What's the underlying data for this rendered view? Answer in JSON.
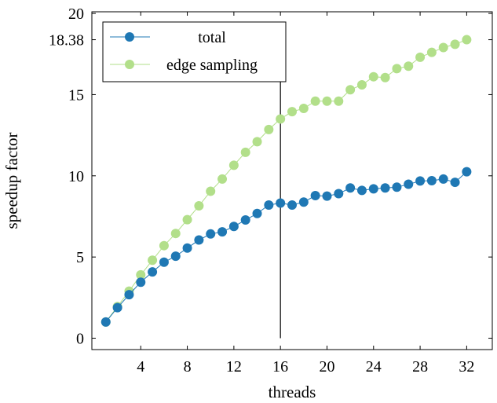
{
  "chart_data": {
    "type": "line",
    "xlabel": "threads",
    "ylabel": "speedup factor",
    "xlim": [
      -0.2,
      34.2
    ],
    "ylim": [
      -0.7,
      20.1
    ],
    "x_ticks": [
      4,
      8,
      12,
      16,
      20,
      24,
      28,
      32
    ],
    "y_ticks": [
      {
        "value": 0,
        "label": "0"
      },
      {
        "value": 5,
        "label": "5"
      },
      {
        "value": 10,
        "label": "10"
      },
      {
        "value": 15,
        "label": "15"
      },
      {
        "value": 18.38,
        "label": "18.38"
      },
      {
        "value": 20,
        "label": "20"
      }
    ],
    "vertical_line_x": 16,
    "legend_position": "top-left",
    "x": [
      1,
      2,
      3,
      4,
      5,
      6,
      7,
      8,
      9,
      10,
      11,
      12,
      13,
      14,
      15,
      16,
      17,
      18,
      19,
      20,
      21,
      22,
      23,
      24,
      25,
      26,
      27,
      28,
      29,
      30,
      31,
      32
    ],
    "series": [
      {
        "name": "total",
        "color": "#1f78b4",
        "values": [
          1.0,
          1.88,
          2.68,
          3.45,
          4.08,
          4.68,
          5.05,
          5.55,
          6.05,
          6.42,
          6.55,
          6.88,
          7.28,
          7.68,
          8.2,
          8.32,
          8.2,
          8.38,
          8.78,
          8.75,
          8.9,
          9.25,
          9.1,
          9.2,
          9.25,
          9.3,
          9.48,
          9.68,
          9.7,
          9.8,
          9.6,
          10.25
        ]
      },
      {
        "name": "edge sampling",
        "color": "#b2df8a",
        "values": [
          1.0,
          1.95,
          2.9,
          3.9,
          4.8,
          5.7,
          6.45,
          7.3,
          8.15,
          9.05,
          9.8,
          10.65,
          11.45,
          12.1,
          12.85,
          13.5,
          13.95,
          14.15,
          14.6,
          14.6,
          14.6,
          15.3,
          15.6,
          16.1,
          16.05,
          16.6,
          16.75,
          17.3,
          17.6,
          17.9,
          18.1,
          18.38
        ]
      }
    ]
  }
}
